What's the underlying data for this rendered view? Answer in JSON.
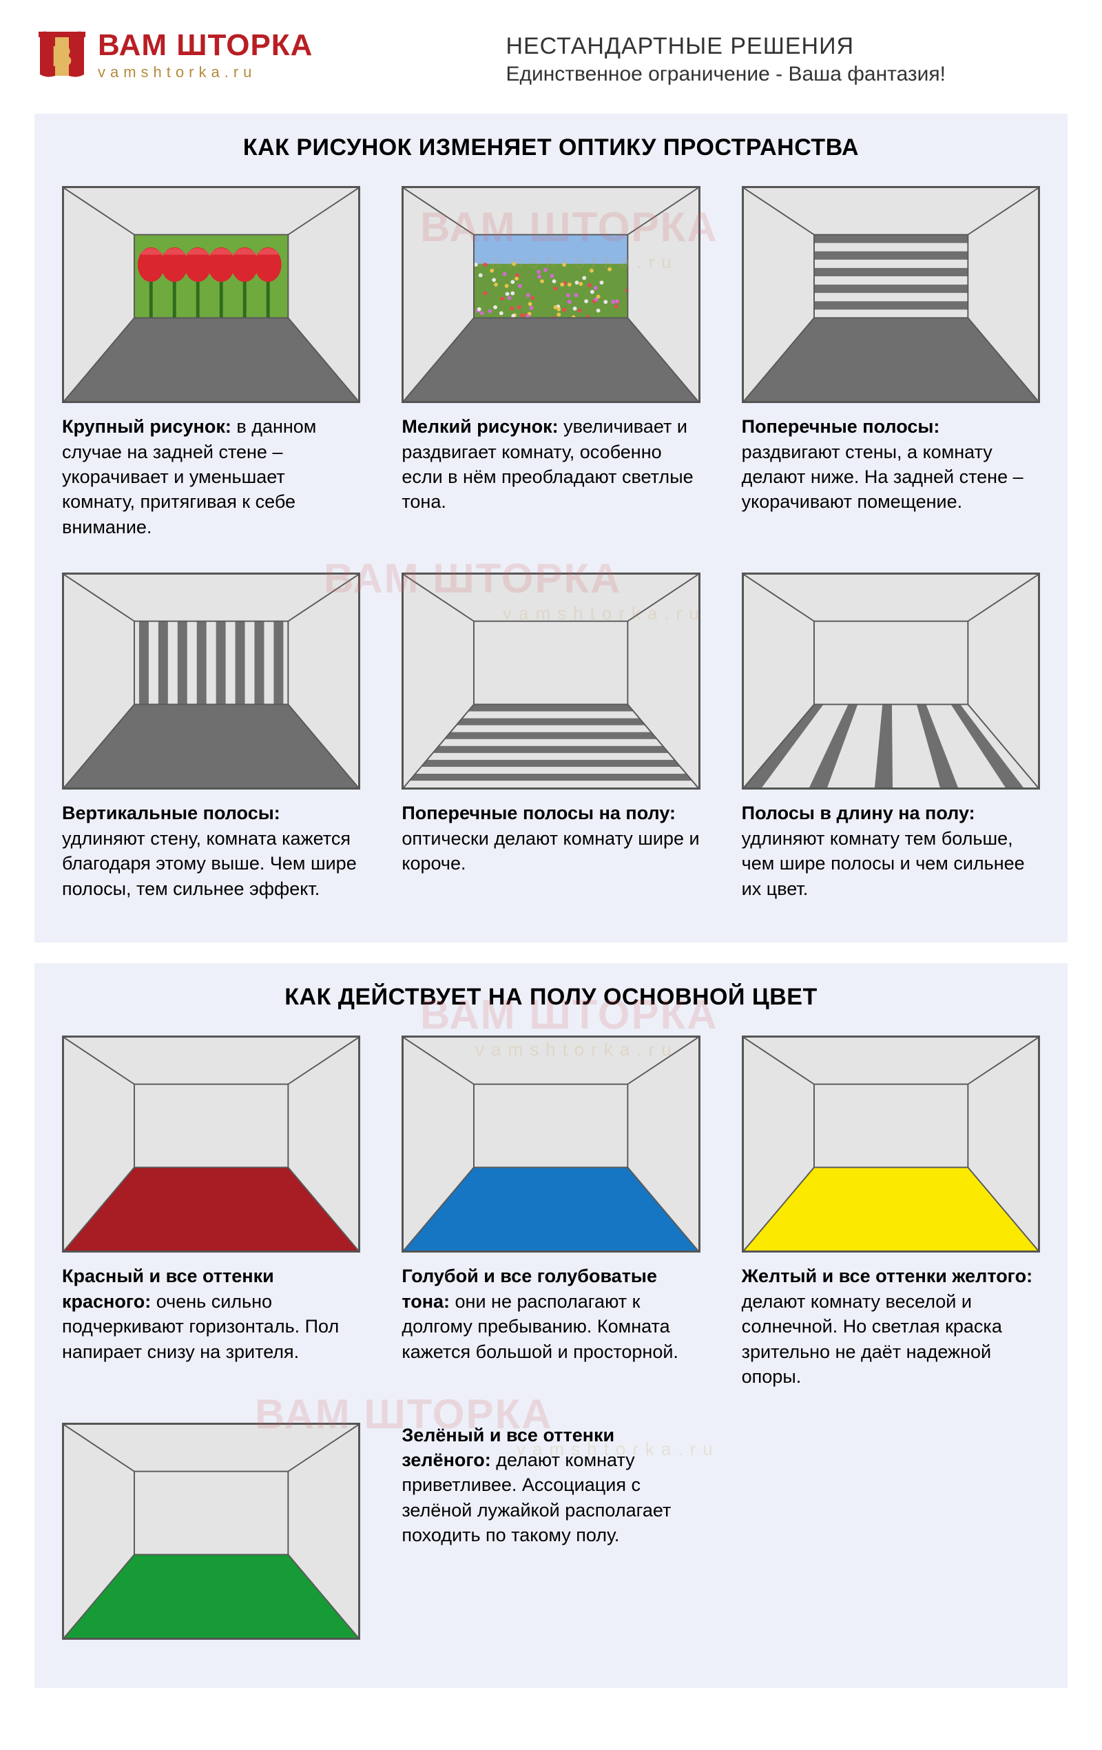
{
  "logo": {
    "main": "ВАМ ШТОРКА",
    "sub": "vamshtorka.ru",
    "icon_color_red": "#b81e24",
    "icon_color_gold": "#e2b862"
  },
  "header": {
    "title": "НЕСТАНДАРТНЫЕ РЕШЕНИЯ",
    "subtitle": "Единственное ограничение - Ваша фантазия!"
  },
  "section1": {
    "title": "КАК РИСУНОК ИЗМЕНЯЕТ ОПТИКУ ПРОСТРАНСТВА",
    "cells": [
      {
        "bold": "Крупный рисунок:",
        "text": " в данном случае на задней стене – укорачивает и уменьшает комнату, притягивая к себе внимание."
      },
      {
        "bold": "Мелкий рисунок:",
        "text": " увеличивает и раздвигает комнату, особенно если в нём преобладают светлые тона."
      },
      {
        "bold": "Поперечные полосы:",
        "text": " раздвигают стены, а комнату делают ниже. На задней стене – укорачивают помещение."
      },
      {
        "bold": "Вертикальные полосы:",
        "text": " удлиняют стену, комната кажется благодаря этому выше. Чем шире полосы, тем сильнее эффект."
      },
      {
        "bold": "Поперечные полосы на полу:",
        "text": " оптически делают комнату шире и короче."
      },
      {
        "bold": "Полосы в длину на полу:",
        "text": " удлиняют комнату тем больше, чем шире полосы и чем сильнее их цвет."
      }
    ]
  },
  "section2": {
    "title": "КАК ДЕЙСТВУЕТ НА ПОЛУ ОСНОВНОЙ ЦВЕТ",
    "cells": [
      {
        "bold": "Красный и все оттенки красного:",
        "text": " очень сильно подчеркивают горизонталь. Пол напирает снизу на зрителя.",
        "floor": "#a81c23"
      },
      {
        "bold": "Голубой и все голубоватые тона:",
        "text": " они не располагают к долгому пре­быванию. Комната кажется большой и просторной.",
        "floor": "#1676c3"
      },
      {
        "bold": "Желтый и все оттенки желтого:",
        "text": " делают комнату веселой и солнечной. Но светлая краска зрительно не даёт надежной опоры.",
        "floor": "#fce900"
      },
      {
        "bold": "Зелёный и все оттенки зелёного:",
        "text": " делают комнату приветливее. Ассоциация с зелёной лужайкой располагает походить по такому полу.",
        "floor": "#179b36"
      }
    ]
  },
  "room_geometry": {
    "outer": [
      0,
      0,
      440,
      320
    ],
    "inner": [
      105,
      70,
      335,
      195
    ],
    "wall_light": "#e4e4e4",
    "wall_back": "#e4e4e4",
    "floor_gray": "#6f6f6f",
    "stripe_gray": "#6f6f6f",
    "line_color": "#595959",
    "line_width": 2
  },
  "watermark": {
    "main": "ВАМ ШТОРКА",
    "sub": "vamshtorka.ru"
  }
}
